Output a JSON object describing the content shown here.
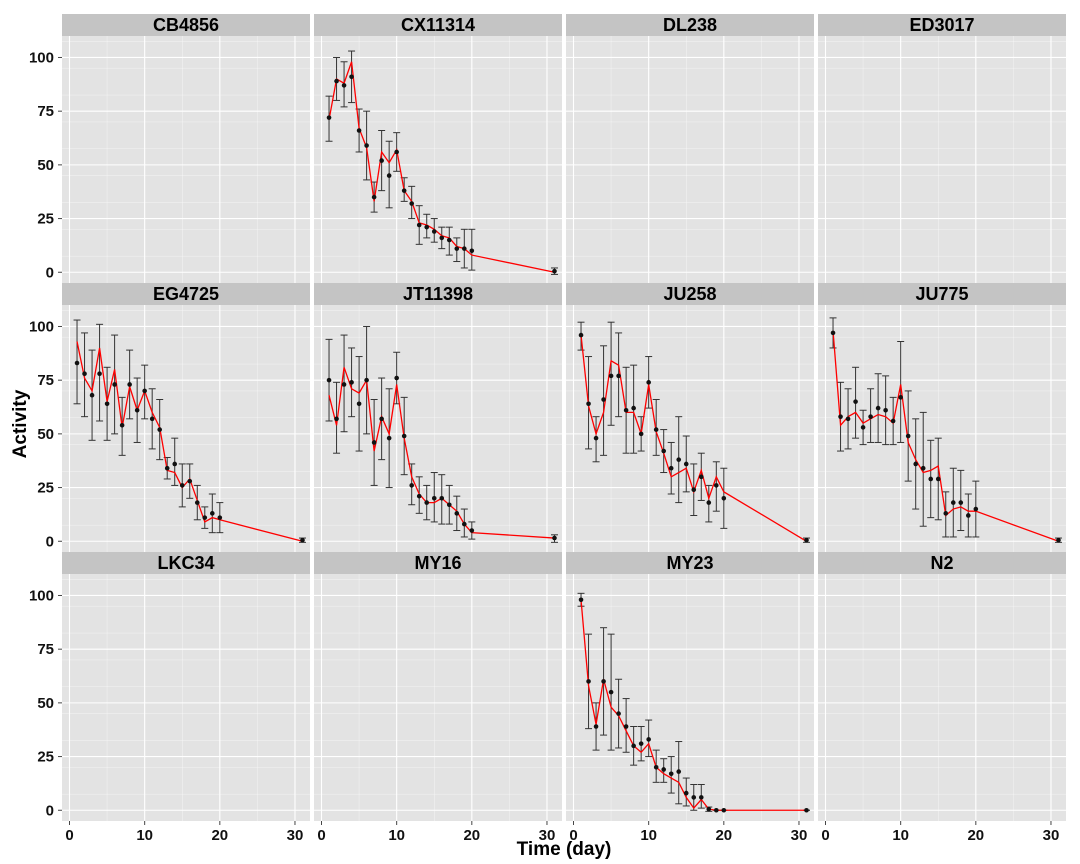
{
  "chart_data": {
    "type": "line",
    "facet_layout": "3 rows x 4 columns, shared axes",
    "xlabel": "Time (day)",
    "ylabel": "Activity",
    "xlim": [
      -1,
      32
    ],
    "ylim": [
      -5,
      110
    ],
    "x_ticks": [
      0,
      10,
      20,
      30
    ],
    "y_ticks": [
      0,
      25,
      50,
      75,
      100
    ],
    "grid": true,
    "colors": {
      "panel_bg": "#e3e3e3",
      "strip_bg": "#c4c4c4",
      "grid": "#ffffff",
      "points": "#111111",
      "error_bars": "#333333",
      "fitted_line": "#ff0000"
    },
    "panels": [
      {
        "strain": "CB4856",
        "points": []
      },
      {
        "strain": "CX11314",
        "points": [
          {
            "x": 1,
            "y": 72,
            "lo": 61,
            "hi": 82,
            "fit": 71
          },
          {
            "x": 2,
            "y": 89,
            "lo": 80,
            "hi": 100,
            "fit": 90
          },
          {
            "x": 3,
            "y": 87,
            "lo": 77,
            "hi": 98,
            "fit": 88
          },
          {
            "x": 4,
            "y": 91,
            "lo": 79,
            "hi": 103,
            "fit": 98
          },
          {
            "x": 5,
            "y": 66,
            "lo": 56,
            "hi": 76,
            "fit": 67
          },
          {
            "x": 6,
            "y": 59,
            "lo": 43,
            "hi": 75,
            "fit": 58
          },
          {
            "x": 7,
            "y": 35,
            "lo": 28,
            "hi": 42,
            "fit": 33
          },
          {
            "x": 8,
            "y": 52,
            "lo": 38,
            "hi": 66,
            "fit": 56
          },
          {
            "x": 9,
            "y": 45,
            "lo": 30,
            "hi": 61,
            "fit": 51
          },
          {
            "x": 10,
            "y": 56,
            "lo": 47,
            "hi": 65,
            "fit": 57
          },
          {
            "x": 11,
            "y": 38,
            "lo": 33,
            "hi": 44,
            "fit": 38
          },
          {
            "x": 12,
            "y": 32,
            "lo": 25,
            "hi": 40,
            "fit": 33
          },
          {
            "x": 13,
            "y": 22,
            "lo": 13,
            "hi": 31,
            "fit": 23
          },
          {
            "x": 14,
            "y": 21,
            "lo": 16,
            "hi": 27,
            "fit": 22
          },
          {
            "x": 15,
            "y": 19,
            "lo": 14,
            "hi": 25,
            "fit": 20
          },
          {
            "x": 16,
            "y": 16,
            "lo": 11,
            "hi": 21,
            "fit": 17
          },
          {
            "x": 17,
            "y": 15,
            "lo": 8,
            "hi": 21,
            "fit": 16
          },
          {
            "x": 18,
            "y": 11,
            "lo": 5,
            "hi": 16,
            "fit": 12
          },
          {
            "x": 19,
            "y": 11,
            "lo": 2,
            "hi": 20,
            "fit": 11
          },
          {
            "x": 20,
            "y": 10,
            "lo": 1,
            "hi": 20,
            "fit": 8
          },
          {
            "x": 31,
            "y": 0.5,
            "lo": -1,
            "hi": 2,
            "fit": 0
          }
        ]
      },
      {
        "strain": "DL238",
        "points": []
      },
      {
        "strain": "ED3017",
        "points": []
      },
      {
        "strain": "EG4725",
        "points": [
          {
            "x": 1,
            "y": 83,
            "lo": 64,
            "hi": 103,
            "fit": 93
          },
          {
            "x": 2,
            "y": 78,
            "lo": 58,
            "hi": 97,
            "fit": 76
          },
          {
            "x": 3,
            "y": 68,
            "lo": 47,
            "hi": 89,
            "fit": 70
          },
          {
            "x": 4,
            "y": 78,
            "lo": 56,
            "hi": 101,
            "fit": 90
          },
          {
            "x": 5,
            "y": 64,
            "lo": 47,
            "hi": 81,
            "fit": 65
          },
          {
            "x": 6,
            "y": 73,
            "lo": 50,
            "hi": 96,
            "fit": 80
          },
          {
            "x": 7,
            "y": 54,
            "lo": 40,
            "hi": 67,
            "fit": 53
          },
          {
            "x": 8,
            "y": 73,
            "lo": 57,
            "hi": 89,
            "fit": 72
          },
          {
            "x": 9,
            "y": 61,
            "lo": 46,
            "hi": 76,
            "fit": 61
          },
          {
            "x": 10,
            "y": 70,
            "lo": 57,
            "hi": 82,
            "fit": 70
          },
          {
            "x": 11,
            "y": 57,
            "lo": 43,
            "hi": 71,
            "fit": 60
          },
          {
            "x": 12,
            "y": 52,
            "lo": 38,
            "hi": 66,
            "fit": 53
          },
          {
            "x": 13,
            "y": 34,
            "lo": 29,
            "hi": 39,
            "fit": 33
          },
          {
            "x": 14,
            "y": 36,
            "lo": 26,
            "hi": 48,
            "fit": 32
          },
          {
            "x": 15,
            "y": 26,
            "lo": 16,
            "hi": 36,
            "fit": 25
          },
          {
            "x": 16,
            "y": 28,
            "lo": 20,
            "hi": 36,
            "fit": 29
          },
          {
            "x": 17,
            "y": 18,
            "lo": 10,
            "hi": 26,
            "fit": 19
          },
          {
            "x": 18,
            "y": 11,
            "lo": 6,
            "hi": 16,
            "fit": 9
          },
          {
            "x": 19,
            "y": 13,
            "lo": 4,
            "hi": 22,
            "fit": 11
          },
          {
            "x": 20,
            "y": 11,
            "lo": 4,
            "hi": 18,
            "fit": 10
          },
          {
            "x": 31,
            "y": 0.5,
            "lo": -0.5,
            "hi": 1.5,
            "fit": 0
          }
        ]
      },
      {
        "strain": "JT11398",
        "points": [
          {
            "x": 1,
            "y": 75,
            "lo": 56,
            "hi": 94,
            "fit": 68
          },
          {
            "x": 2,
            "y": 57,
            "lo": 41,
            "hi": 74,
            "fit": 54
          },
          {
            "x": 3,
            "y": 73,
            "lo": 51,
            "hi": 96,
            "fit": 81
          },
          {
            "x": 4,
            "y": 74,
            "lo": 58,
            "hi": 90,
            "fit": 71
          },
          {
            "x": 5,
            "y": 64,
            "lo": 42,
            "hi": 86,
            "fit": 69
          },
          {
            "x": 6,
            "y": 75,
            "lo": 50,
            "hi": 100,
            "fit": 75
          },
          {
            "x": 7,
            "y": 46,
            "lo": 26,
            "hi": 66,
            "fit": 42
          },
          {
            "x": 8,
            "y": 57,
            "lo": 38,
            "hi": 76,
            "fit": 58
          },
          {
            "x": 9,
            "y": 48,
            "lo": 25,
            "hi": 71,
            "fit": 50
          },
          {
            "x": 10,
            "y": 76,
            "lo": 64,
            "hi": 88,
            "fit": 73
          },
          {
            "x": 11,
            "y": 49,
            "lo": 31,
            "hi": 67,
            "fit": 48
          },
          {
            "x": 12,
            "y": 26,
            "lo": 17,
            "hi": 36,
            "fit": 30
          },
          {
            "x": 13,
            "y": 21,
            "lo": 13,
            "hi": 30,
            "fit": 22
          },
          {
            "x": 14,
            "y": 18,
            "lo": 10,
            "hi": 26,
            "fit": 18
          },
          {
            "x": 15,
            "y": 20,
            "lo": 9,
            "hi": 32,
            "fit": 18
          },
          {
            "x": 16,
            "y": 20,
            "lo": 8,
            "hi": 31,
            "fit": 20
          },
          {
            "x": 17,
            "y": 17,
            "lo": 8,
            "hi": 26,
            "fit": 17
          },
          {
            "x": 18,
            "y": 13,
            "lo": 5,
            "hi": 21,
            "fit": 14
          },
          {
            "x": 19,
            "y": 8,
            "lo": 2,
            "hi": 15,
            "fit": 8
          },
          {
            "x": 20,
            "y": 5,
            "lo": 1,
            "hi": 9,
            "fit": 4
          },
          {
            "x": 31,
            "y": 1.5,
            "lo": -0.5,
            "hi": 3,
            "fit": 1.5
          }
        ]
      },
      {
        "strain": "JU258",
        "points": [
          {
            "x": 1,
            "y": 96,
            "lo": 89,
            "hi": 102,
            "fit": 96
          },
          {
            "x": 2,
            "y": 64,
            "lo": 43,
            "hi": 86,
            "fit": 63
          },
          {
            "x": 3,
            "y": 48,
            "lo": 37,
            "hi": 58,
            "fit": 50
          },
          {
            "x": 4,
            "y": 66,
            "lo": 40,
            "hi": 91,
            "fit": 60
          },
          {
            "x": 5,
            "y": 77,
            "lo": 54,
            "hi": 102,
            "fit": 84
          },
          {
            "x": 6,
            "y": 77,
            "lo": 58,
            "hi": 97,
            "fit": 82
          },
          {
            "x": 7,
            "y": 61,
            "lo": 41,
            "hi": 81,
            "fit": 60
          },
          {
            "x": 8,
            "y": 62,
            "lo": 41,
            "hi": 82,
            "fit": 60
          },
          {
            "x": 9,
            "y": 50,
            "lo": 42,
            "hi": 58,
            "fit": 50
          },
          {
            "x": 10,
            "y": 74,
            "lo": 62,
            "hi": 86,
            "fit": 73
          },
          {
            "x": 11,
            "y": 52,
            "lo": 40,
            "hi": 66,
            "fit": 51
          },
          {
            "x": 12,
            "y": 42,
            "lo": 32,
            "hi": 52,
            "fit": 41
          },
          {
            "x": 13,
            "y": 34,
            "lo": 22,
            "hi": 46,
            "fit": 30
          },
          {
            "x": 14,
            "y": 38,
            "lo": 18,
            "hi": 58,
            "fit": 32
          },
          {
            "x": 15,
            "y": 36,
            "lo": 23,
            "hi": 49,
            "fit": 34
          },
          {
            "x": 16,
            "y": 24,
            "lo": 12,
            "hi": 36,
            "fit": 23
          },
          {
            "x": 17,
            "y": 30,
            "lo": 19,
            "hi": 41,
            "fit": 33
          },
          {
            "x": 18,
            "y": 18,
            "lo": 9,
            "hi": 26,
            "fit": 20
          },
          {
            "x": 19,
            "y": 26,
            "lo": 14,
            "hi": 37,
            "fit": 30
          },
          {
            "x": 20,
            "y": 20,
            "lo": 6,
            "hi": 34,
            "fit": 23
          },
          {
            "x": 31,
            "y": 0.5,
            "lo": -0.5,
            "hi": 1.5,
            "fit": 0
          }
        ]
      },
      {
        "strain": "JU775",
        "points": [
          {
            "x": 1,
            "y": 97,
            "lo": 90,
            "hi": 104,
            "fit": 98
          },
          {
            "x": 2,
            "y": 58,
            "lo": 42,
            "hi": 74,
            "fit": 54
          },
          {
            "x": 3,
            "y": 57,
            "lo": 43,
            "hi": 71,
            "fit": 58
          },
          {
            "x": 4,
            "y": 65,
            "lo": 48,
            "hi": 81,
            "fit": 60
          },
          {
            "x": 5,
            "y": 53,
            "lo": 45,
            "hi": 61,
            "fit": 55
          },
          {
            "x": 6,
            "y": 58,
            "lo": 46,
            "hi": 71,
            "fit": 57
          },
          {
            "x": 7,
            "y": 62,
            "lo": 46,
            "hi": 78,
            "fit": 59
          },
          {
            "x": 8,
            "y": 61,
            "lo": 45,
            "hi": 77,
            "fit": 58
          },
          {
            "x": 9,
            "y": 56,
            "lo": 45,
            "hi": 67,
            "fit": 55
          },
          {
            "x": 10,
            "y": 67,
            "lo": 46,
            "hi": 93,
            "fit": 73
          },
          {
            "x": 11,
            "y": 49,
            "lo": 28,
            "hi": 70,
            "fit": 46
          },
          {
            "x": 12,
            "y": 36,
            "lo": 15,
            "hi": 57,
            "fit": 38
          },
          {
            "x": 13,
            "y": 34,
            "lo": 7,
            "hi": 60,
            "fit": 32
          },
          {
            "x": 14,
            "y": 29,
            "lo": 11,
            "hi": 47,
            "fit": 33
          },
          {
            "x": 15,
            "y": 29,
            "lo": 10,
            "hi": 48,
            "fit": 35
          },
          {
            "x": 16,
            "y": 13,
            "lo": 2,
            "hi": 23,
            "fit": 12
          },
          {
            "x": 17,
            "y": 18,
            "lo": 2,
            "hi": 34,
            "fit": 15
          },
          {
            "x": 18,
            "y": 18,
            "lo": 5,
            "hi": 33,
            "fit": 16
          },
          {
            "x": 19,
            "y": 12,
            "lo": 2,
            "hi": 22,
            "fit": 14
          },
          {
            "x": 20,
            "y": 15,
            "lo": 2,
            "hi": 28,
            "fit": 14
          },
          {
            "x": 31,
            "y": 0.5,
            "lo": -0.5,
            "hi": 1.5,
            "fit": 0
          }
        ]
      },
      {
        "strain": "LKC34",
        "points": []
      },
      {
        "strain": "MY16",
        "points": []
      },
      {
        "strain": "MY23",
        "points": [
          {
            "x": 1,
            "y": 98,
            "lo": 95,
            "hi": 101,
            "fit": 98
          },
          {
            "x": 2,
            "y": 60,
            "lo": 38,
            "hi": 82,
            "fit": 58
          },
          {
            "x": 3,
            "y": 39,
            "lo": 28,
            "hi": 50,
            "fit": 40
          },
          {
            "x": 4,
            "y": 60,
            "lo": 35,
            "hi": 85,
            "fit": 61
          },
          {
            "x": 5,
            "y": 55,
            "lo": 28,
            "hi": 82,
            "fit": 48
          },
          {
            "x": 6,
            "y": 45,
            "lo": 29,
            "hi": 61,
            "fit": 44
          },
          {
            "x": 7,
            "y": 39,
            "lo": 27,
            "hi": 52,
            "fit": 37
          },
          {
            "x": 8,
            "y": 30,
            "lo": 21,
            "hi": 39,
            "fit": 30
          },
          {
            "x": 9,
            "y": 31,
            "lo": 23,
            "hi": 39,
            "fit": 27
          },
          {
            "x": 10,
            "y": 33,
            "lo": 25,
            "hi": 42,
            "fit": 31
          },
          {
            "x": 11,
            "y": 20,
            "lo": 13,
            "hi": 28,
            "fit": 20
          },
          {
            "x": 12,
            "y": 19,
            "lo": 13,
            "hi": 24,
            "fit": 17
          },
          {
            "x": 13,
            "y": 17,
            "lo": 8,
            "hi": 25,
            "fit": 15
          },
          {
            "x": 14,
            "y": 18,
            "lo": 3,
            "hi": 32,
            "fit": 13
          },
          {
            "x": 15,
            "y": 8,
            "lo": 2,
            "hi": 15,
            "fit": 6
          },
          {
            "x": 16,
            "y": 6,
            "lo": 0,
            "hi": 12,
            "fit": 1
          },
          {
            "x": 17,
            "y": 6,
            "lo": 1,
            "hi": 12,
            "fit": 5
          },
          {
            "x": 18,
            "y": 0.5,
            "lo": -0.5,
            "hi": 1.5,
            "fit": 0.5
          },
          {
            "x": 19,
            "y": 0,
            "lo": 0,
            "hi": 0,
            "fit": 0
          },
          {
            "x": 20,
            "y": 0,
            "lo": 0,
            "hi": 0,
            "fit": 0
          },
          {
            "x": 31,
            "y": 0,
            "lo": 0,
            "hi": 0,
            "fit": 0
          }
        ]
      },
      {
        "strain": "N2",
        "points": []
      }
    ]
  }
}
